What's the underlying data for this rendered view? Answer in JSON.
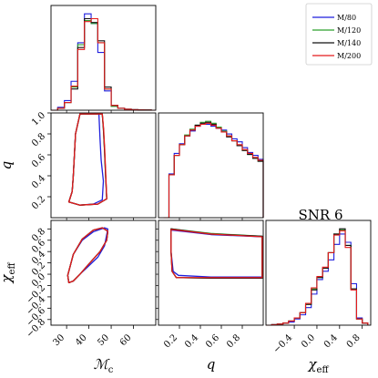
{
  "chart_data": {
    "type": "corner",
    "title": "SNR 6",
    "parameters": [
      {
        "key": "mc",
        "label": "ℳ",
        "sub": "c",
        "range": [
          23,
          70
        ],
        "ticks": [
          30,
          40,
          50,
          60
        ]
      },
      {
        "key": "q",
        "label": "q",
        "sub": "",
        "range": [
          0,
          1
        ],
        "ticks": [
          0.2,
          0.4,
          0.6,
          0.8
        ]
      },
      {
        "key": "chi",
        "label": "χ",
        "sub": "eff",
        "range": [
          -0.9,
          0.95
        ],
        "ticks": [
          -0.8,
          -0.6,
          -0.4,
          -0.2,
          0.0,
          0.2,
          0.4,
          0.6,
          0.8
        ],
        "bottom_ticks": [
          -0.4,
          0.0,
          0.4,
          0.8
        ]
      }
    ],
    "bottom_tick_labels": {
      "mc": [
        "30",
        "40",
        "50",
        "60"
      ],
      "q": [
        "0.2",
        "0.4",
        "0.6",
        "0.8"
      ],
      "chi": [
        "−0.4",
        "0.0",
        "0.4",
        "0.8"
      ]
    },
    "left_tick_labels": {
      "q": [
        "0.2",
        "0.4",
        "0.6",
        "0.8",
        "1.0"
      ],
      "chi": [
        "−0.8",
        "−0.6",
        "−0.4",
        "−0.2",
        "0.0",
        "0.2",
        "0.4",
        "0.6",
        "0.8"
      ]
    },
    "q_left_ticks": [
      0.2,
      0.4,
      0.6,
      0.8,
      1.0
    ],
    "series": [
      {
        "name": "M/80",
        "color": "#1f1fdd"
      },
      {
        "name": "M/120",
        "color": "#2ca02c"
      },
      {
        "name": "M/140",
        "color": "#111111"
      },
      {
        "name": "M/200",
        "color": "#e41a1c"
      }
    ],
    "histograms": {
      "mc": {
        "bin_edges": [
          23,
          26,
          29,
          32,
          35,
          38,
          41,
          44,
          47,
          50,
          53,
          56,
          59,
          62,
          65,
          68,
          70
        ],
        "series_counts": [
          [
            0.0,
            0.03,
            0.1,
            0.3,
            0.7,
            1.0,
            0.9,
            0.6,
            0.2,
            0.05,
            0.02,
            0.01,
            0.005,
            0.003,
            0.002,
            0.0
          ],
          [
            0.0,
            0.02,
            0.08,
            0.24,
            0.68,
            0.93,
            0.9,
            0.7,
            0.22,
            0.04,
            0.02,
            0.01,
            0.005,
            0.003,
            0.002,
            0.0
          ],
          [
            0.0,
            0.02,
            0.08,
            0.22,
            0.65,
            0.95,
            0.91,
            0.72,
            0.24,
            0.05,
            0.02,
            0.01,
            0.005,
            0.003,
            0.002,
            0.0
          ],
          [
            0.0,
            0.02,
            0.08,
            0.25,
            0.63,
            0.92,
            0.95,
            0.7,
            0.22,
            0.05,
            0.02,
            0.01,
            0.005,
            0.003,
            0.002,
            0.0
          ]
        ]
      },
      "q": {
        "bin_edges": [
          0.05,
          0.1,
          0.15,
          0.2,
          0.25,
          0.3,
          0.35,
          0.4,
          0.45,
          0.5,
          0.55,
          0.6,
          0.65,
          0.7,
          0.75,
          0.8,
          0.85,
          0.9,
          0.95,
          1.0
        ],
        "series_counts": [
          [
            0.0,
            0.45,
            0.66,
            0.76,
            0.84,
            0.89,
            0.94,
            0.96,
            0.96,
            0.94,
            0.92,
            0.9,
            0.86,
            0.81,
            0.78,
            0.72,
            0.67,
            0.64,
            0.6
          ],
          [
            0.0,
            0.44,
            0.64,
            0.75,
            0.85,
            0.91,
            0.95,
            0.98,
            0.99,
            0.97,
            0.93,
            0.89,
            0.84,
            0.79,
            0.74,
            0.69,
            0.65,
            0.61,
            0.58
          ],
          [
            0.0,
            0.44,
            0.64,
            0.75,
            0.84,
            0.9,
            0.95,
            0.97,
            0.98,
            0.96,
            0.92,
            0.88,
            0.83,
            0.79,
            0.74,
            0.69,
            0.65,
            0.61,
            0.58
          ],
          [
            0.0,
            0.44,
            0.64,
            0.75,
            0.84,
            0.9,
            0.94,
            0.96,
            0.97,
            0.95,
            0.92,
            0.88,
            0.84,
            0.79,
            0.75,
            0.7,
            0.66,
            0.62,
            0.59
          ]
        ]
      },
      "chi": {
        "bin_edges": [
          -0.9,
          -0.8,
          -0.7,
          -0.6,
          -0.5,
          -0.4,
          -0.3,
          -0.2,
          -0.1,
          0.0,
          0.1,
          0.2,
          0.3,
          0.4,
          0.5,
          0.6,
          0.7,
          0.8,
          0.9
        ],
        "series_counts": [
          [
            0.0,
            0.005,
            0.01,
            0.02,
            0.03,
            0.06,
            0.1,
            0.17,
            0.3,
            0.44,
            0.52,
            0.63,
            0.78,
            0.88,
            0.8,
            0.4,
            0.07,
            0.02
          ],
          [
            0.0,
            0.005,
            0.01,
            0.02,
            0.04,
            0.07,
            0.12,
            0.2,
            0.35,
            0.46,
            0.55,
            0.7,
            0.88,
            0.92,
            0.77,
            0.35,
            0.06,
            0.02
          ],
          [
            0.0,
            0.005,
            0.01,
            0.02,
            0.04,
            0.07,
            0.12,
            0.2,
            0.34,
            0.46,
            0.55,
            0.7,
            0.88,
            0.93,
            0.77,
            0.35,
            0.06,
            0.02
          ],
          [
            0.0,
            0.005,
            0.01,
            0.02,
            0.04,
            0.07,
            0.12,
            0.21,
            0.36,
            0.47,
            0.56,
            0.7,
            0.87,
            0.91,
            0.75,
            0.34,
            0.06,
            0.02
          ]
        ]
      }
    },
    "contours": {
      "mc_q": [
        [
          [
            31,
            0.15
          ],
          [
            36,
            0.12
          ],
          [
            42,
            0.13
          ],
          [
            46,
            0.17
          ],
          [
            46.5,
            0.35
          ],
          [
            45.5,
            0.55
          ],
          [
            45,
            0.75
          ],
          [
            44.5,
            0.99
          ],
          [
            36,
            0.99
          ],
          [
            34,
            0.8
          ],
          [
            33.5,
            0.6
          ],
          [
            33,
            0.4
          ],
          [
            32.5,
            0.25
          ],
          [
            31,
            0.15
          ]
        ],
        [
          [
            31,
            0.15
          ],
          [
            36,
            0.12
          ],
          [
            44,
            0.13
          ],
          [
            48,
            0.18
          ],
          [
            47.5,
            0.4
          ],
          [
            47,
            0.65
          ],
          [
            46.5,
            0.85
          ],
          [
            46,
            0.99
          ],
          [
            36,
            0.99
          ],
          [
            34,
            0.8
          ],
          [
            33.5,
            0.6
          ],
          [
            33,
            0.4
          ],
          [
            32.5,
            0.25
          ],
          [
            31,
            0.15
          ]
        ],
        [
          [
            31,
            0.15
          ],
          [
            36,
            0.12
          ],
          [
            44,
            0.13
          ],
          [
            48,
            0.18
          ],
          [
            47.5,
            0.4
          ],
          [
            47,
            0.65
          ],
          [
            46.5,
            0.85
          ],
          [
            46,
            0.99
          ],
          [
            36,
            0.99
          ],
          [
            34,
            0.8
          ],
          [
            33.5,
            0.6
          ],
          [
            33,
            0.4
          ],
          [
            32.5,
            0.25
          ],
          [
            31,
            0.15
          ]
        ],
        [
          [
            31,
            0.15
          ],
          [
            36,
            0.12
          ],
          [
            44,
            0.13
          ],
          [
            48,
            0.18
          ],
          [
            47.6,
            0.4
          ],
          [
            47.1,
            0.65
          ],
          [
            46.6,
            0.85
          ],
          [
            46,
            0.99
          ],
          [
            36,
            0.99
          ],
          [
            34,
            0.8
          ],
          [
            33.5,
            0.6
          ],
          [
            33,
            0.4
          ],
          [
            32.5,
            0.25
          ],
          [
            31,
            0.15
          ]
        ]
      ],
      "mc_chi": [
        [
          [
            31,
            -0.15
          ],
          [
            30.5,
            -0.02
          ],
          [
            33,
            0.35
          ],
          [
            37,
            0.6
          ],
          [
            42,
            0.75
          ],
          [
            47,
            0.82
          ],
          [
            48.5,
            0.8
          ],
          [
            47,
            0.5
          ],
          [
            44,
            0.3
          ],
          [
            40,
            0.15
          ],
          [
            36,
            0.0
          ],
          [
            33,
            -0.12
          ],
          [
            31,
            -0.15
          ]
        ],
        [
          [
            31,
            -0.15
          ],
          [
            30.5,
            -0.02
          ],
          [
            33,
            0.35
          ],
          [
            37,
            0.62
          ],
          [
            42,
            0.78
          ],
          [
            46,
            0.82
          ],
          [
            48.5,
            0.76
          ],
          [
            48,
            0.6
          ],
          [
            45,
            0.4
          ],
          [
            40,
            0.18
          ],
          [
            36,
            0.0
          ],
          [
            33,
            -0.12
          ],
          [
            31,
            -0.15
          ]
        ],
        [
          [
            31,
            -0.15
          ],
          [
            30.5,
            -0.02
          ],
          [
            33,
            0.35
          ],
          [
            37,
            0.62
          ],
          [
            42,
            0.78
          ],
          [
            46,
            0.82
          ],
          [
            48.5,
            0.76
          ],
          [
            48,
            0.6
          ],
          [
            45,
            0.4
          ],
          [
            40,
            0.18
          ],
          [
            36,
            0.0
          ],
          [
            33,
            -0.12
          ],
          [
            31,
            -0.15
          ]
        ],
        [
          [
            31,
            -0.15
          ],
          [
            30.5,
            -0.02
          ],
          [
            33,
            0.35
          ],
          [
            37,
            0.62
          ],
          [
            42,
            0.78
          ],
          [
            46,
            0.82
          ],
          [
            48.5,
            0.76
          ],
          [
            48,
            0.6
          ],
          [
            45,
            0.4
          ],
          [
            40,
            0.18
          ],
          [
            36,
            0.0
          ],
          [
            33,
            -0.12
          ],
          [
            31,
            -0.15
          ]
        ]
      ],
      "q_chi": [
        [
          [
            0.12,
            0.78
          ],
          [
            0.5,
            0.7
          ],
          [
            0.99,
            0.66
          ],
          [
            0.99,
            -0.05
          ],
          [
            0.5,
            -0.05
          ],
          [
            0.19,
            -0.02
          ],
          [
            0.14,
            0.05
          ],
          [
            0.12,
            0.4
          ],
          [
            0.12,
            0.78
          ]
        ],
        [
          [
            0.12,
            0.8
          ],
          [
            0.5,
            0.72
          ],
          [
            0.99,
            0.67
          ],
          [
            0.99,
            -0.07
          ],
          [
            0.5,
            -0.07
          ],
          [
            0.17,
            -0.06
          ],
          [
            0.13,
            0.05
          ],
          [
            0.12,
            0.4
          ],
          [
            0.12,
            0.8
          ]
        ],
        [
          [
            0.12,
            0.8
          ],
          [
            0.5,
            0.71
          ],
          [
            0.99,
            0.67
          ],
          [
            0.99,
            -0.07
          ],
          [
            0.5,
            -0.07
          ],
          [
            0.17,
            -0.06
          ],
          [
            0.13,
            0.05
          ],
          [
            0.12,
            0.4
          ],
          [
            0.12,
            0.8
          ]
        ],
        [
          [
            0.12,
            0.79
          ],
          [
            0.5,
            0.71
          ],
          [
            0.99,
            0.66
          ],
          [
            0.99,
            -0.06
          ],
          [
            0.5,
            -0.06
          ],
          [
            0.17,
            -0.06
          ],
          [
            0.13,
            0.05
          ],
          [
            0.12,
            0.4
          ],
          [
            0.12,
            0.79
          ]
        ]
      ]
    },
    "legend_position": "top-right",
    "grid": false
  }
}
